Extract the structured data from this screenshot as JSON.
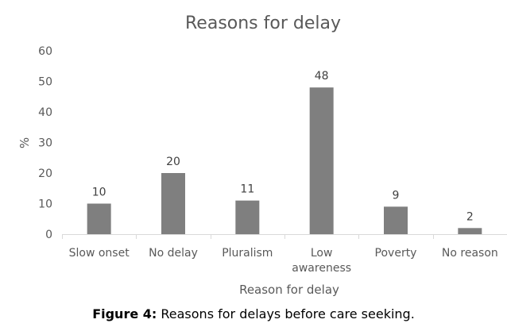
{
  "chart_data": {
    "type": "bar",
    "title": "Reasons for delay",
    "xlabel": "Reason for delay",
    "ylabel": "%",
    "ylim": [
      0,
      60
    ],
    "yticks": [
      0,
      10,
      20,
      30,
      40,
      50,
      60
    ],
    "grid": false,
    "categories": [
      "Slow onset",
      "No delay",
      "Pluralism",
      "Low awareness",
      "Poverty",
      "No reason"
    ],
    "category_lines": [
      [
        "Slow onset"
      ],
      [
        "No delay"
      ],
      [
        "Pluralism"
      ],
      [
        "Low",
        "awareness"
      ],
      [
        "Poverty"
      ],
      [
        "No reason"
      ]
    ],
    "values": [
      10,
      20,
      11,
      48,
      9,
      2
    ],
    "bar_color": "#7f7f7f"
  },
  "caption": {
    "label": "Figure 4:",
    "text": " Reasons for delays before care seeking."
  }
}
